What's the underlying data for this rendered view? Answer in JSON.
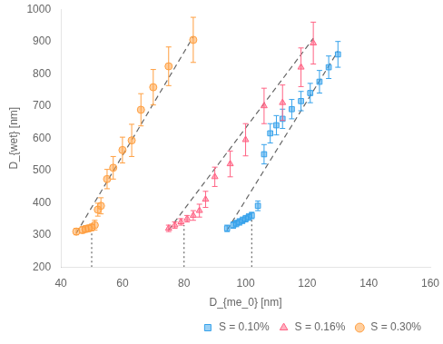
{
  "chart_data": {
    "type": "scatter",
    "xlabel": "D_{me_0} [nm]",
    "ylabel": "D_{wet} [nm]",
    "xlim": [
      40,
      160
    ],
    "ylim": [
      200,
      1000
    ],
    "xticks": [
      40,
      60,
      80,
      100,
      120,
      140,
      160
    ],
    "yticks": [
      200,
      300,
      400,
      500,
      600,
      700,
      800,
      900,
      1000
    ],
    "grid": false,
    "legend": "lower right",
    "series": [
      {
        "name": "S = 0.10%",
        "type": "scatter",
        "marker": "square",
        "x": [
          94,
          96,
          97,
          98,
          99,
          100,
          101,
          102,
          104,
          106,
          108,
          110,
          112,
          115,
          118,
          121,
          124,
          127,
          130
        ],
        "values": [
          320,
          330,
          335,
          340,
          345,
          350,
          355,
          360,
          390,
          550,
          615,
          640,
          660,
          690,
          715,
          740,
          775,
          820,
          860
        ],
        "yerr": [
          10,
          10,
          10,
          10,
          10,
          10,
          10,
          10,
          15,
          30,
          30,
          30,
          30,
          30,
          30,
          30,
          35,
          35,
          40
        ]
      },
      {
        "name": "S = 0.16%",
        "type": "scatter",
        "marker": "triangle",
        "x": [
          75,
          77,
          79,
          81,
          83,
          85,
          87,
          90,
          95,
          100,
          106,
          112,
          118,
          122
        ],
        "values": [
          320,
          330,
          340,
          350,
          360,
          375,
          410,
          480,
          520,
          595,
          700,
          710,
          820,
          895
        ],
        "yerr": [
          10,
          10,
          10,
          10,
          15,
          20,
          25,
          30,
          40,
          50,
          55,
          55,
          60,
          65
        ]
      },
      {
        "name": "S = 0.30%",
        "type": "scatter",
        "marker": "circle",
        "x": [
          45,
          47,
          48,
          49,
          50,
          51,
          52,
          53,
          55,
          57,
          60,
          63,
          66,
          70,
          75,
          83
        ],
        "values": [
          310,
          315,
          318,
          320,
          323,
          330,
          378,
          390,
          473,
          508,
          563,
          593,
          688,
          758,
          823,
          905
        ],
        "yerr": [
          10,
          10,
          10,
          10,
          10,
          15,
          20,
          25,
          30,
          35,
          40,
          50,
          50,
          55,
          60,
          70
        ]
      },
      {
        "type": "line",
        "line_style": "dashed",
        "x": [
          45,
          83
        ],
        "values": [
          305,
          915
        ]
      },
      {
        "type": "line",
        "line_style": "dashed",
        "x": [
          75,
          122
        ],
        "values": [
          315,
          910
        ]
      },
      {
        "type": "line",
        "line_style": "dashed",
        "x": [
          94,
          130
        ],
        "values": [
          315,
          870
        ]
      },
      {
        "type": "line",
        "line_style": "dotted",
        "x": [
          50,
          50
        ],
        "values": [
          200,
          315
        ]
      },
      {
        "type": "line",
        "line_style": "dotted",
        "x": [
          80,
          80
        ],
        "values": [
          200,
          330
        ]
      },
      {
        "type": "line",
        "line_style": "dotted",
        "x": [
          102,
          102
        ],
        "values": [
          200,
          350
        ]
      }
    ]
  }
}
